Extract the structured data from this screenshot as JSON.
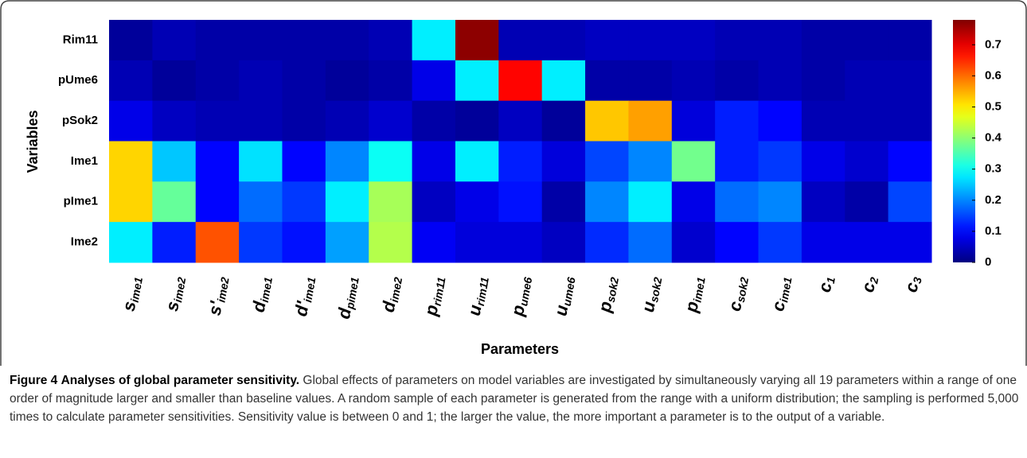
{
  "chart_data": {
    "type": "heatmap",
    "x_label": "Parameters",
    "y_label": "Variables",
    "rows": [
      "Rim11",
      "pUme6",
      "pSok2",
      "Ime1",
      "pIme1",
      "Ime2"
    ],
    "categories": [
      {
        "base": "s",
        "sub": "ime1"
      },
      {
        "base": "s",
        "sub": "ime2"
      },
      {
        "base": "s'",
        "sub": "ime2"
      },
      {
        "base": "d",
        "sub": "ime1"
      },
      {
        "base": "d'",
        "sub": "ime1"
      },
      {
        "base": "d",
        "sub": "pime1"
      },
      {
        "base": "d",
        "sub": "ime2"
      },
      {
        "base": "p",
        "sub": "rim11"
      },
      {
        "base": "u",
        "sub": "rim11"
      },
      {
        "base": "p",
        "sub": "ume6"
      },
      {
        "base": "u",
        "sub": "ume6"
      },
      {
        "base": "p",
        "sub": "sok2"
      },
      {
        "base": "u",
        "sub": "sok2"
      },
      {
        "base": "p",
        "sub": "ime1"
      },
      {
        "base": "c",
        "sub": "sok2"
      },
      {
        "base": "c",
        "sub": "ime1"
      },
      {
        "base": "c",
        "sub": "1"
      },
      {
        "base": "c",
        "sub": "2"
      },
      {
        "base": "c",
        "sub": "3"
      }
    ],
    "z": [
      [
        0.02,
        0.04,
        0.03,
        0.03,
        0.03,
        0.03,
        0.04,
        0.28,
        0.77,
        0.04,
        0.04,
        0.05,
        0.05,
        0.05,
        0.04,
        0.04,
        0.03,
        0.03,
        0.03
      ],
      [
        0.04,
        0.02,
        0.03,
        0.04,
        0.03,
        0.02,
        0.03,
        0.08,
        0.28,
        0.68,
        0.28,
        0.03,
        0.03,
        0.04,
        0.03,
        0.04,
        0.03,
        0.04,
        0.04
      ],
      [
        0.08,
        0.05,
        0.04,
        0.04,
        0.03,
        0.04,
        0.06,
        0.03,
        0.02,
        0.05,
        0.02,
        0.53,
        0.56,
        0.07,
        0.12,
        0.1,
        0.04,
        0.04,
        0.04
      ],
      [
        0.52,
        0.25,
        0.1,
        0.27,
        0.1,
        0.2,
        0.3,
        0.08,
        0.28,
        0.12,
        0.07,
        0.15,
        0.2,
        0.38,
        0.12,
        0.14,
        0.08,
        0.06,
        0.1
      ],
      [
        0.52,
        0.37,
        0.1,
        0.18,
        0.14,
        0.28,
        0.42,
        0.05,
        0.08,
        0.11,
        0.03,
        0.2,
        0.28,
        0.08,
        0.18,
        0.2,
        0.05,
        0.03,
        0.15
      ],
      [
        0.28,
        0.12,
        0.62,
        0.14,
        0.11,
        0.22,
        0.43,
        0.09,
        0.07,
        0.07,
        0.05,
        0.13,
        0.18,
        0.06,
        0.1,
        0.14,
        0.08,
        0.08,
        0.08
      ]
    ],
    "colormap": "jet",
    "clim": [
      0,
      0.78
    ],
    "cticks": [
      0,
      0.1,
      0.2,
      0.3,
      0.4,
      0.5,
      0.6,
      0.7
    ]
  },
  "caption": {
    "label": "Figure 4",
    "title": "Analyses of global parameter sensitivity.",
    "text": "Global effects of parameters on model variables are investigated by simultaneously varying all 19 parameters within a range of one order of magnitude larger and smaller than baseline values. A random sample of each parameter is generated from the range with a uniform distribution; the sampling is performed 5,000 times to calculate parameter sensitivities. Sensitivity value is between 0 and 1; the larger the value, the more important a parameter is to the output of a variable."
  }
}
